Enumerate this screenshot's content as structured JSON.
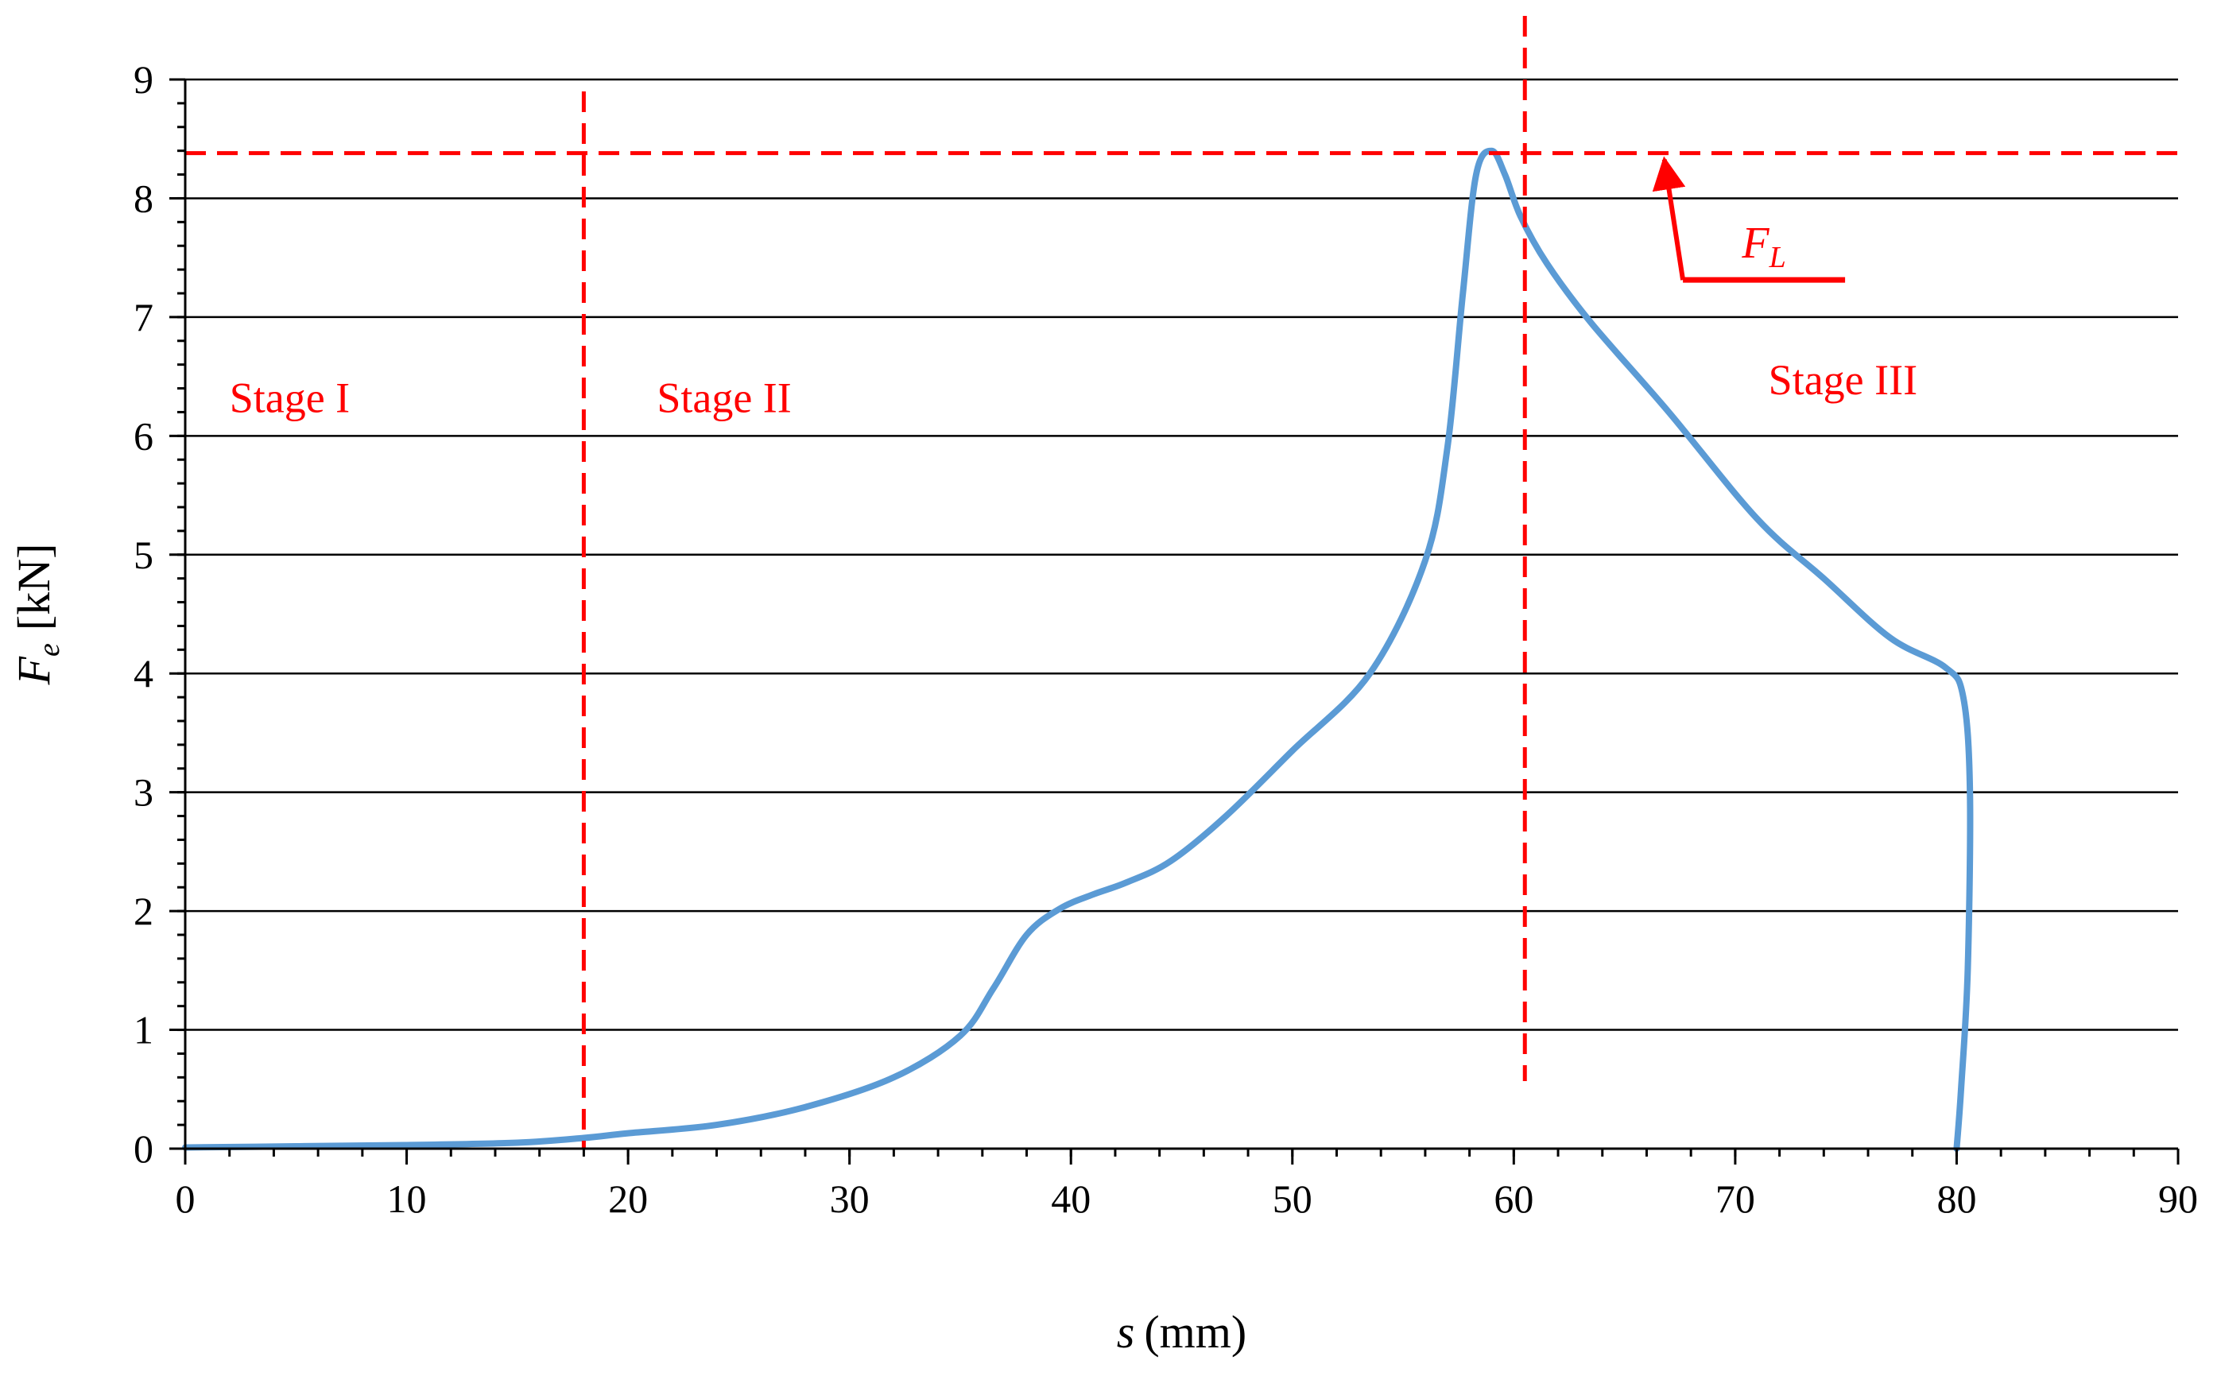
{
  "chart_data": {
    "type": "line",
    "title": "",
    "xlabel": {
      "var": "s",
      "unit": "(mm)"
    },
    "ylabel": {
      "var": "F",
      "sub": "e",
      "unit": "[kN]"
    },
    "xlim": [
      0,
      90
    ],
    "ylim": [
      0,
      9
    ],
    "x_ticks": [
      0,
      10,
      20,
      30,
      40,
      50,
      60,
      70,
      80,
      90
    ],
    "y_ticks": [
      0,
      1,
      2,
      3,
      4,
      5,
      6,
      7,
      8,
      9
    ],
    "x_minor_step": 2,
    "y_minor_step": 0.2,
    "grid": "horizontal major",
    "series": [
      {
        "name": "F_e",
        "color": "#5b9bd5",
        "x": [
          0,
          5,
          10,
          15,
          18,
          20,
          24,
          28,
          32,
          35,
          36.5,
          38,
          39.5,
          41,
          42.5,
          44.5,
          47,
          50,
          53.5,
          56,
          57,
          57.7,
          58.3,
          59,
          59.6,
          60.3,
          61.5,
          63.5,
          67,
          71,
          74,
          77,
          79.5,
          80.3,
          80.6,
          80.5,
          80.2,
          80
        ],
        "y": [
          0.01,
          0.02,
          0.03,
          0.05,
          0.09,
          0.13,
          0.2,
          0.35,
          0.6,
          0.95,
          1.35,
          1.8,
          2.02,
          2.14,
          2.24,
          2.42,
          2.8,
          3.35,
          4.0,
          4.95,
          5.9,
          7.2,
          8.2,
          8.4,
          8.2,
          7.85,
          7.45,
          6.95,
          6.2,
          5.3,
          4.8,
          4.3,
          4.05,
          3.8,
          3.0,
          1.5,
          0.5,
          0.0
        ]
      }
    ],
    "reference_lines": [
      {
        "orientation": "horizontal",
        "value": 8.38,
        "style": "dashed",
        "color": "#ff0000"
      },
      {
        "orientation": "vertical",
        "value": 18,
        "style": "dashed",
        "color": "#ff0000"
      },
      {
        "orientation": "vertical",
        "value": 60.5,
        "style": "dashed",
        "color": "#ff0000"
      }
    ],
    "annotations": {
      "stages": [
        {
          "text": "Stage I",
          "x": 2,
          "y": 6.2
        },
        {
          "text": "Stage II",
          "x": 21.3,
          "y": 6.2
        },
        {
          "text": "Stage III",
          "x": 71.5,
          "y": 6.35
        }
      ],
      "peak_label": {
        "var": "F",
        "sub": "L",
        "text_x": 71.3,
        "text_y": 7.5,
        "arrow_to_x": 66.8,
        "arrow_to_y": 8.38
      }
    },
    "colors": {
      "curve": "#5b9bd5",
      "reference": "#ff0000",
      "grid": "#000000"
    }
  }
}
